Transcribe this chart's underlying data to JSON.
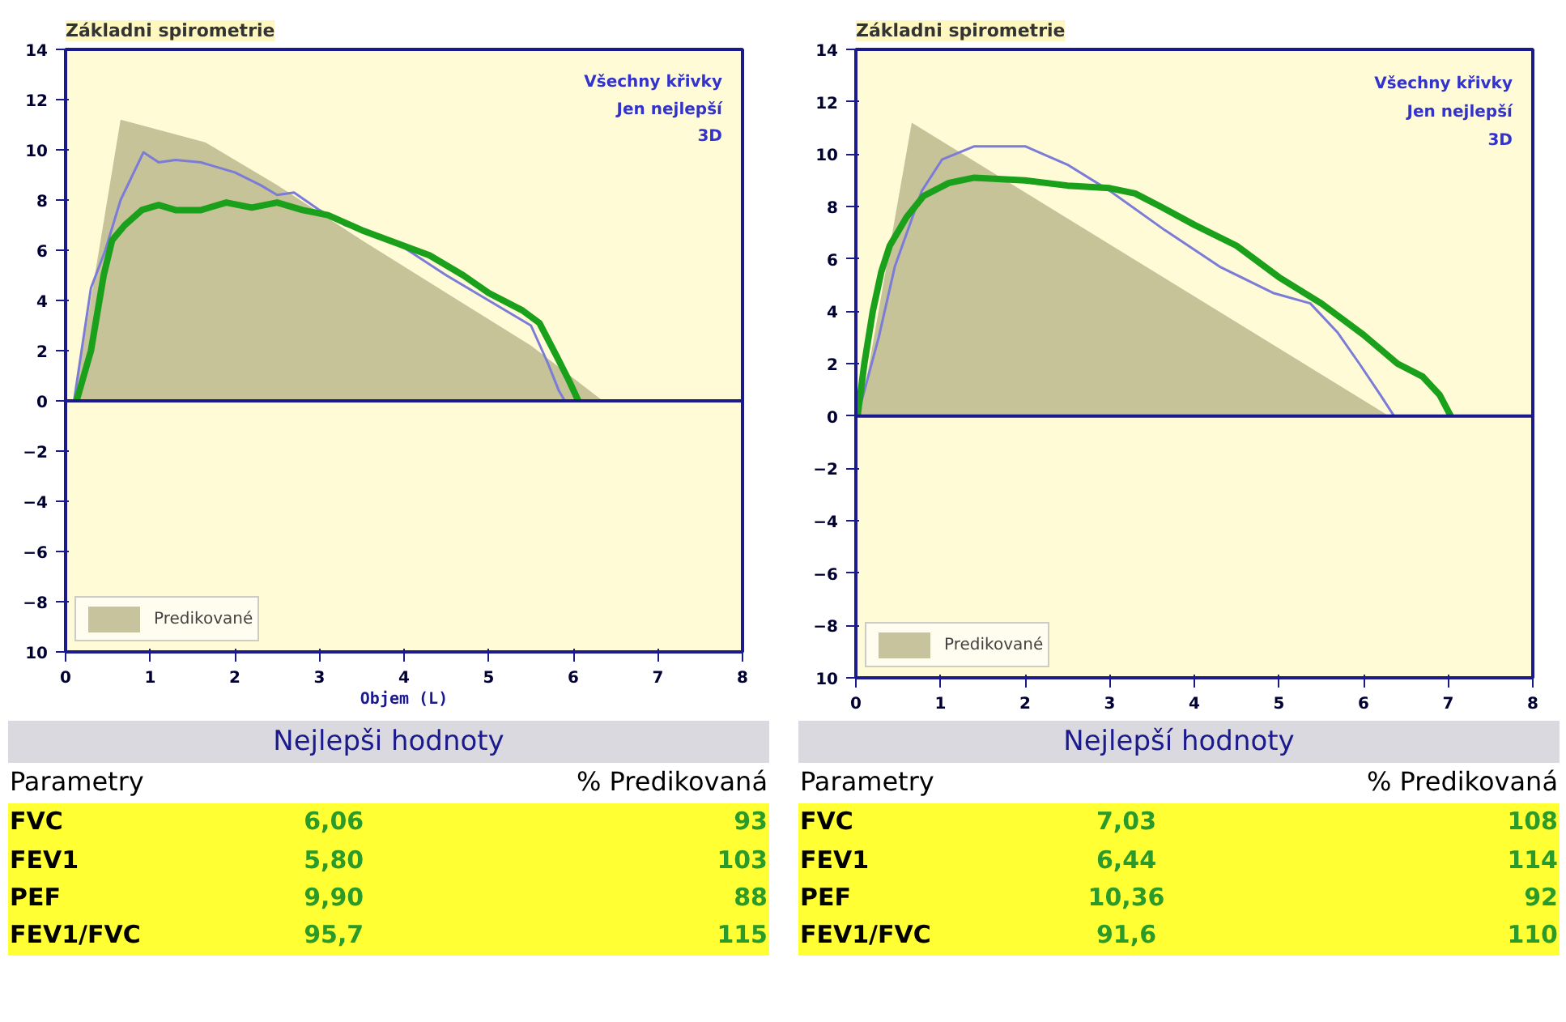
{
  "chart_data": [
    {
      "type": "line",
      "title": "Základni spirometrie",
      "xlabel": "Objem (L)",
      "xlim": [
        0,
        8
      ],
      "xticks": [
        0,
        1,
        2,
        3,
        4,
        5,
        6,
        7,
        8
      ],
      "ylim": [
        -10,
        14
      ],
      "yticks": [
        {
          "value": -10,
          "label": "10"
        },
        -8,
        -6,
        -4,
        -2,
        0,
        2,
        4,
        6,
        8,
        10,
        12,
        14
      ],
      "legend": "bottom left",
      "grid": false,
      "ref_lines": [
        {
          "axis": "y",
          "value": 0,
          "color": "#1a1a8c"
        }
      ],
      "series": [
        {
          "type": "area",
          "name": "Predikované",
          "color": "#bdb88e",
          "x": [
            0.1,
            0.65,
            1.65,
            2.5,
            3.5,
            4.5,
            5.5,
            6.35
          ],
          "values": [
            0,
            11.2,
            10.3,
            8.6,
            6.4,
            4.3,
            2.2,
            0
          ]
        },
        {
          "color": "#7b7bd8",
          "x": [
            0.1,
            0.3,
            0.47,
            0.65,
            0.92,
            1.1,
            1.3,
            1.6,
            2.0,
            2.3,
            2.5,
            2.7,
            3.0,
            3.3,
            3.6,
            4.0,
            4.5,
            5.0,
            5.5,
            5.7,
            5.83,
            5.9
          ],
          "values": [
            0,
            4.5,
            6.0,
            8.0,
            9.9,
            9.5,
            9.6,
            9.5,
            9.1,
            8.6,
            8.2,
            8.3,
            7.6,
            7.0,
            6.7,
            6.1,
            5.0,
            4.0,
            3.0,
            1.5,
            0.4,
            0
          ]
        },
        {
          "color": "#1aa01a",
          "x": [
            0.13,
            0.3,
            0.45,
            0.55,
            0.7,
            0.9,
            1.1,
            1.3,
            1.6,
            1.9,
            2.2,
            2.5,
            2.8,
            3.1,
            3.5,
            3.9,
            4.3,
            4.7,
            5.0,
            5.4,
            5.6,
            5.8,
            5.95,
            6.06
          ],
          "values": [
            0,
            2,
            5,
            6.4,
            7.0,
            7.6,
            7.8,
            7.6,
            7.6,
            7.9,
            7.7,
            7.9,
            7.6,
            7.4,
            6.8,
            6.3,
            5.8,
            5.0,
            4.3,
            3.6,
            3.1,
            1.8,
            0.8,
            0
          ]
        }
      ],
      "annotations": [
        "Všechny křivky",
        "Jen nejlepší",
        "3D",
        "Nejlepši hodnoty",
        "Parametry",
        "% Predikovaná",
        "FVC",
        "6,06",
        "93",
        "FEV1",
        "5,80",
        "103",
        "PEF",
        "9,90",
        "88",
        "FEV1/FVC",
        "95,7",
        "115"
      ]
    },
    {
      "type": "line",
      "title": "Základni spirometrie",
      "xlim": [
        0,
        8
      ],
      "xticks": [
        0,
        1,
        2,
        3,
        4,
        5,
        6,
        7,
        8
      ],
      "ylim": [
        -10,
        14
      ],
      "yticks": [
        {
          "value": -10,
          "label": "10"
        },
        -8,
        -6,
        -4,
        -2,
        0,
        2,
        4,
        6,
        8,
        10,
        12,
        14
      ],
      "legend": "bottom left",
      "grid": false,
      "ref_lines": [
        {
          "axis": "y",
          "value": 0,
          "color": "#1a1a8c"
        }
      ],
      "series": [
        {
          "type": "area",
          "name": "Predikované",
          "color": "#bdb88e",
          "x": [
            0.05,
            0.66,
            6.3
          ],
          "values": [
            0,
            11.2,
            0
          ]
        },
        {
          "color": "#7b7bd8",
          "x": [
            0.02,
            0.27,
            0.46,
            0.78,
            1.02,
            1.4,
            2.0,
            2.5,
            3.0,
            3.65,
            4.3,
            4.93,
            5.37,
            5.69,
            5.95,
            6.2,
            6.36
          ],
          "values": [
            0,
            3.0,
            5.7,
            8.6,
            9.8,
            10.3,
            10.3,
            9.6,
            8.6,
            7.1,
            5.7,
            4.7,
            4.3,
            3.2,
            2.0,
            0.8,
            0
          ]
        },
        {
          "color": "#1aa01a",
          "x": [
            0.02,
            0.1,
            0.2,
            0.3,
            0.4,
            0.6,
            0.8,
            1.1,
            1.4,
            2.0,
            2.5,
            3.0,
            3.3,
            3.6,
            4.0,
            4.5,
            5.0,
            5.5,
            6.0,
            6.4,
            6.7,
            6.9,
            7.03
          ],
          "values": [
            0,
            2,
            4,
            5.5,
            6.5,
            7.6,
            8.4,
            8.9,
            9.1,
            9.0,
            8.8,
            8.7,
            8.5,
            8.0,
            7.3,
            6.5,
            5.3,
            4.3,
            3.1,
            2.0,
            1.5,
            0.8,
            0
          ]
        }
      ],
      "annotations": [
        "Všechny křivky",
        "Jen nejlepší",
        "3D",
        "Nejlepší hodnoty",
        "Parametry",
        "% Predikovaná",
        "FVC",
        "7,03",
        "108",
        "FEV1",
        "6,44",
        "114",
        "PEF",
        "10,36",
        "92",
        "FEV1/FVC",
        "91,6",
        "110"
      ]
    }
  ]
}
